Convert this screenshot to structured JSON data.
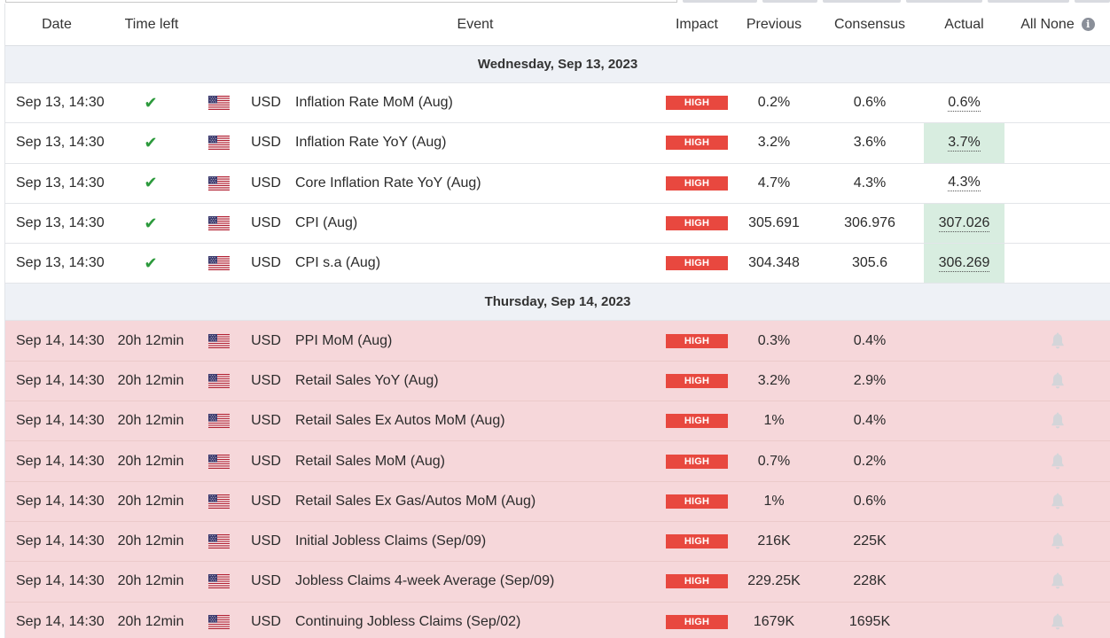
{
  "header": {
    "date": "Date",
    "time_left": "Time left",
    "event": "Event",
    "impact": "Impact",
    "previous": "Previous",
    "consensus": "Consensus",
    "actual": "Actual",
    "alerts": "All None",
    "info_icon": "i"
  },
  "colors": {
    "high_impact": "#e8483f",
    "upcoming_row": "#f6d7da",
    "actual_highlight": "#d8ede0",
    "check": "#2c9a3c",
    "day_header": "#eef1f6"
  },
  "icons": {
    "check": "✔",
    "flag": "us-flag-icon",
    "bell": "bell-icon"
  },
  "days": [
    {
      "label": "Wednesday, Sep 13, 2023",
      "events": [
        {
          "date": "Sep 13, 14:30",
          "status": "released",
          "currency": "USD",
          "name": "Inflation Rate MoM (Aug)",
          "impact": "HIGH",
          "previous": "0.2%",
          "consensus": "0.6%",
          "actual": "0.6%",
          "actual_highlight": false
        },
        {
          "date": "Sep 13, 14:30",
          "status": "released",
          "currency": "USD",
          "name": "Inflation Rate YoY (Aug)",
          "impact": "HIGH",
          "previous": "3.2%",
          "consensus": "3.6%",
          "actual": "3.7%",
          "actual_highlight": true
        },
        {
          "date": "Sep 13, 14:30",
          "status": "released",
          "currency": "USD",
          "name": "Core Inflation Rate YoY (Aug)",
          "impact": "HIGH",
          "previous": "4.7%",
          "consensus": "4.3%",
          "actual": "4.3%",
          "actual_highlight": false
        },
        {
          "date": "Sep 13, 14:30",
          "status": "released",
          "currency": "USD",
          "name": "CPI (Aug)",
          "impact": "HIGH",
          "previous": "305.691",
          "consensus": "306.976",
          "actual": "307.026",
          "actual_highlight": true
        },
        {
          "date": "Sep 13, 14:30",
          "status": "released",
          "currency": "USD",
          "name": "CPI s.a (Aug)",
          "impact": "HIGH",
          "previous": "304.348",
          "consensus": "305.6",
          "actual": "306.269",
          "actual_highlight": true
        }
      ]
    },
    {
      "label": "Thursday, Sep 14, 2023",
      "events": [
        {
          "date": "Sep 14, 14:30",
          "status": "upcoming",
          "time_left": "20h 12min",
          "currency": "USD",
          "name": "PPI MoM (Aug)",
          "impact": "HIGH",
          "previous": "0.3%",
          "consensus": "0.4%",
          "actual": ""
        },
        {
          "date": "Sep 14, 14:30",
          "status": "upcoming",
          "time_left": "20h 12min",
          "currency": "USD",
          "name": "Retail Sales YoY (Aug)",
          "impact": "HIGH",
          "previous": "3.2%",
          "consensus": "2.9%",
          "actual": ""
        },
        {
          "date": "Sep 14, 14:30",
          "status": "upcoming",
          "time_left": "20h 12min",
          "currency": "USD",
          "name": "Retail Sales Ex Autos MoM (Aug)",
          "impact": "HIGH",
          "previous": "1%",
          "consensus": "0.4%",
          "actual": ""
        },
        {
          "date": "Sep 14, 14:30",
          "status": "upcoming",
          "time_left": "20h 12min",
          "currency": "USD",
          "name": "Retail Sales MoM (Aug)",
          "impact": "HIGH",
          "previous": "0.7%",
          "consensus": "0.2%",
          "actual": ""
        },
        {
          "date": "Sep 14, 14:30",
          "status": "upcoming",
          "time_left": "20h 12min",
          "currency": "USD",
          "name": "Retail Sales Ex Gas/Autos MoM (Aug)",
          "impact": "HIGH",
          "previous": "1%",
          "consensus": "0.6%",
          "actual": ""
        },
        {
          "date": "Sep 14, 14:30",
          "status": "upcoming",
          "time_left": "20h 12min",
          "currency": "USD",
          "name": "Initial Jobless Claims (Sep/09)",
          "impact": "HIGH",
          "previous": "216K",
          "consensus": "225K",
          "actual": ""
        },
        {
          "date": "Sep 14, 14:30",
          "status": "upcoming",
          "time_left": "20h 12min",
          "currency": "USD",
          "name": "Jobless Claims 4-week Average (Sep/09)",
          "impact": "HIGH",
          "previous": "229.25K",
          "consensus": "228K",
          "actual": ""
        },
        {
          "date": "Sep 14, 14:30",
          "status": "upcoming",
          "time_left": "20h 12min",
          "currency": "USD",
          "name": "Continuing Jobless Claims (Sep/02)",
          "impact": "HIGH",
          "previous": "1679K",
          "consensus": "1695K",
          "actual": ""
        }
      ]
    }
  ]
}
